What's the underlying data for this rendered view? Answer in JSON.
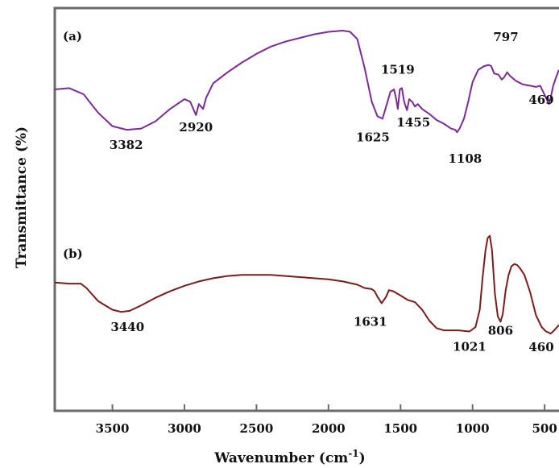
{
  "chart_data": {
    "type": "line",
    "xlabel": "Wavenumber (cm",
    "xlabel_superscript": "-1",
    "xlabel_close": ")",
    "ylabel": "Transmittance (%)",
    "x_reversed": true,
    "xlim": [
      3900,
      400
    ],
    "xticks": [
      3500,
      3000,
      2500,
      2000,
      1500,
      1000,
      500
    ],
    "y_ticks_shown": false,
    "grid": false,
    "series": [
      {
        "name": "(a)",
        "color": "#7b2a96",
        "points": [
          [
            3900,
            0.52
          ],
          [
            3800,
            0.53
          ],
          [
            3700,
            0.48
          ],
          [
            3600,
            0.33
          ],
          [
            3500,
            0.22
          ],
          [
            3400,
            0.19
          ],
          [
            3300,
            0.2
          ],
          [
            3200,
            0.26
          ],
          [
            3100,
            0.36
          ],
          [
            3000,
            0.44
          ],
          [
            2960,
            0.42
          ],
          [
            2920,
            0.31
          ],
          [
            2900,
            0.4
          ],
          [
            2870,
            0.36
          ],
          [
            2850,
            0.45
          ],
          [
            2800,
            0.57
          ],
          [
            2700,
            0.66
          ],
          [
            2600,
            0.74
          ],
          [
            2500,
            0.81
          ],
          [
            2400,
            0.87
          ],
          [
            2300,
            0.91
          ],
          [
            2200,
            0.94
          ],
          [
            2100,
            0.97
          ],
          [
            2000,
            0.99
          ],
          [
            1900,
            1.0
          ],
          [
            1850,
            0.99
          ],
          [
            1800,
            0.93
          ],
          [
            1750,
            0.7
          ],
          [
            1700,
            0.42
          ],
          [
            1660,
            0.3
          ],
          [
            1625,
            0.28
          ],
          [
            1600,
            0.38
          ],
          [
            1570,
            0.5
          ],
          [
            1545,
            0.52
          ],
          [
            1530,
            0.44
          ],
          [
            1519,
            0.36
          ],
          [
            1505,
            0.52
          ],
          [
            1490,
            0.53
          ],
          [
            1475,
            0.42
          ],
          [
            1455,
            0.35
          ],
          [
            1440,
            0.44
          ],
          [
            1420,
            0.42
          ],
          [
            1400,
            0.38
          ],
          [
            1380,
            0.4
          ],
          [
            1350,
            0.36
          ],
          [
            1300,
            0.32
          ],
          [
            1250,
            0.27
          ],
          [
            1200,
            0.24
          ],
          [
            1150,
            0.2
          ],
          [
            1120,
            0.19
          ],
          [
            1108,
            0.17
          ],
          [
            1090,
            0.2
          ],
          [
            1060,
            0.28
          ],
          [
            1030,
            0.42
          ],
          [
            1000,
            0.58
          ],
          [
            960,
            0.68
          ],
          [
            920,
            0.71
          ],
          [
            890,
            0.72
          ],
          [
            870,
            0.71
          ],
          [
            850,
            0.65
          ],
          [
            820,
            0.64
          ],
          [
            797,
            0.6
          ],
          [
            780,
            0.62
          ],
          [
            760,
            0.66
          ],
          [
            740,
            0.63
          ],
          [
            700,
            0.59
          ],
          [
            650,
            0.56
          ],
          [
            600,
            0.55
          ],
          [
            560,
            0.54
          ],
          [
            530,
            0.55
          ],
          [
            510,
            0.5
          ],
          [
            490,
            0.45
          ],
          [
            469,
            0.4
          ],
          [
            455,
            0.47
          ],
          [
            440,
            0.55
          ],
          [
            420,
            0.62
          ],
          [
            400,
            0.68
          ]
        ]
      },
      {
        "name": "(b)",
        "color": "#7a1c1c",
        "points": [
          [
            3900,
            0.55
          ],
          [
            3800,
            0.54
          ],
          [
            3720,
            0.54
          ],
          [
            3680,
            0.5
          ],
          [
            3600,
            0.38
          ],
          [
            3500,
            0.3
          ],
          [
            3440,
            0.28
          ],
          [
            3380,
            0.29
          ],
          [
            3300,
            0.34
          ],
          [
            3200,
            0.41
          ],
          [
            3100,
            0.47
          ],
          [
            3000,
            0.52
          ],
          [
            2900,
            0.56
          ],
          [
            2800,
            0.59
          ],
          [
            2700,
            0.61
          ],
          [
            2600,
            0.62
          ],
          [
            2500,
            0.62
          ],
          [
            2400,
            0.62
          ],
          [
            2300,
            0.61
          ],
          [
            2200,
            0.6
          ],
          [
            2100,
            0.59
          ],
          [
            2000,
            0.58
          ],
          [
            1900,
            0.56
          ],
          [
            1800,
            0.53
          ],
          [
            1750,
            0.5
          ],
          [
            1700,
            0.49
          ],
          [
            1680,
            0.47
          ],
          [
            1660,
            0.42
          ],
          [
            1631,
            0.36
          ],
          [
            1600,
            0.42
          ],
          [
            1580,
            0.48
          ],
          [
            1550,
            0.47
          ],
          [
            1500,
            0.43
          ],
          [
            1450,
            0.39
          ],
          [
            1400,
            0.37
          ],
          [
            1350,
            0.3
          ],
          [
            1300,
            0.2
          ],
          [
            1250,
            0.13
          ],
          [
            1200,
            0.11
          ],
          [
            1100,
            0.11
          ],
          [
            1021,
            0.1
          ],
          [
            980,
            0.14
          ],
          [
            950,
            0.3
          ],
          [
            930,
            0.6
          ],
          [
            910,
            0.85
          ],
          [
            895,
            0.96
          ],
          [
            880,
            0.98
          ],
          [
            865,
            0.85
          ],
          [
            845,
            0.45
          ],
          [
            825,
            0.24
          ],
          [
            806,
            0.19
          ],
          [
            790,
            0.26
          ],
          [
            770,
            0.48
          ],
          [
            750,
            0.62
          ],
          [
            730,
            0.7
          ],
          [
            710,
            0.72
          ],
          [
            690,
            0.71
          ],
          [
            670,
            0.68
          ],
          [
            640,
            0.62
          ],
          [
            600,
            0.46
          ],
          [
            560,
            0.25
          ],
          [
            520,
            0.14
          ],
          [
            490,
            0.1
          ],
          [
            470,
            0.09
          ],
          [
            460,
            0.08
          ],
          [
            440,
            0.1
          ],
          [
            420,
            0.13
          ],
          [
            400,
            0.16
          ]
        ]
      }
    ],
    "annotations": [
      {
        "series": 0,
        "text": "3382",
        "x": 3382
      },
      {
        "series": 0,
        "text": "2920",
        "x": 2920
      },
      {
        "series": 0,
        "text": "1519",
        "x": 1519
      },
      {
        "series": 0,
        "text": "1625",
        "x": 1625
      },
      {
        "series": 0,
        "text": "1455",
        "x": 1455
      },
      {
        "series": 0,
        "text": "1108",
        "x": 1108
      },
      {
        "series": 0,
        "text": "797",
        "x": 797
      },
      {
        "series": 0,
        "text": "469",
        "x": 469
      },
      {
        "series": 1,
        "text": "3440",
        "x": 3440
      },
      {
        "series": 1,
        "text": "1631",
        "x": 1631
      },
      {
        "series": 1,
        "text": "1021",
        "x": 1021
      },
      {
        "series": 1,
        "text": "806",
        "x": 806
      },
      {
        "series": 1,
        "text": "460",
        "x": 460
      }
    ]
  }
}
